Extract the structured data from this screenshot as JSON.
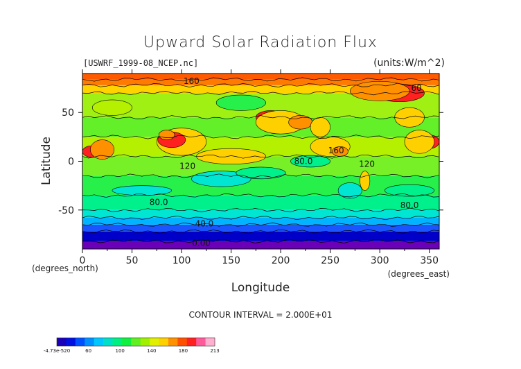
{
  "chart_data": {
    "type": "heatmap",
    "title": "Upward Solar Radiation Flux",
    "source_label": "[USWRF_1999-08_NCEP.nc]",
    "units_label": "(units:W/m^2)",
    "xlabel": "Longitude",
    "ylabel": "Latitude",
    "x_unit_label": "(degrees_east)",
    "y_unit_label": "(degrees_north)",
    "xlim": [
      0,
      360
    ],
    "ylim": [
      -90,
      90
    ],
    "x_ticks": [
      0,
      50,
      100,
      150,
      200,
      250,
      300,
      350
    ],
    "y_ticks": [
      50,
      0,
      -50
    ],
    "contour_interval_text": "CONTOUR INTERVAL = 2.000E+01",
    "contour_labels": [
      {
        "text": "160",
        "x": 110,
        "y": 82
      },
      {
        "text": "60",
        "x": 337,
        "y": 75
      },
      {
        "text": "160",
        "x": 256,
        "y": 11
      },
      {
        "text": "80.0",
        "x": 223,
        "y": 0
      },
      {
        "text": "120",
        "x": 106,
        "y": -5
      },
      {
        "text": "120",
        "x": 287,
        "y": -3
      },
      {
        "text": "80.0",
        "x": 77,
        "y": -42
      },
      {
        "text": "80.0",
        "x": 330,
        "y": -45
      },
      {
        "text": "40.0",
        "x": 123,
        "y": -64
      },
      {
        "text": "0.00",
        "x": 120,
        "y": -84
      }
    ],
    "colorbar": {
      "labels": [
        "-4.73e-520",
        "60",
        "100",
        "140",
        "180",
        "213"
      ],
      "colors": [
        "#1a00b8",
        "#0010e0",
        "#0050ff",
        "#0090ff",
        "#00c8ff",
        "#00e0c8",
        "#00f080",
        "#10f040",
        "#60f020",
        "#a0f000",
        "#e0f000",
        "#ffd000",
        "#ff9000",
        "#ff5000",
        "#ff2020",
        "#ff5a9a",
        "#ffb0d0"
      ]
    },
    "latitude_bands": [
      {
        "from": -90,
        "to": -82,
        "value": 0,
        "color": "#6a00b8"
      },
      {
        "from": -82,
        "to": -72,
        "value": 20,
        "color": "#0000c8"
      },
      {
        "from": -72,
        "to": -65,
        "value": 40,
        "color": "#1a55ff"
      },
      {
        "from": -65,
        "to": -58,
        "value": 60,
        "color": "#00b4ff"
      },
      {
        "from": -58,
        "to": -50,
        "value": 70,
        "color": "#00e6d2"
      },
      {
        "from": -50,
        "to": -35,
        "value": 80,
        "color": "#00f08c"
      },
      {
        "from": -35,
        "to": -15,
        "value": 90,
        "color": "#28f04a"
      },
      {
        "from": -15,
        "to": 5,
        "value": 110,
        "color": "#78f028"
      },
      {
        "from": 5,
        "to": 25,
        "value": 120,
        "color": "#b4f000"
      },
      {
        "from": 25,
        "to": 45,
        "value": 110,
        "color": "#64f028"
      },
      {
        "from": 45,
        "to": 70,
        "value": 120,
        "color": "#a0f014"
      },
      {
        "from": 70,
        "to": 78,
        "value": 150,
        "color": "#ffd200"
      },
      {
        "from": 78,
        "to": 84,
        "value": 170,
        "color": "#ff7a00"
      },
      {
        "from": 84,
        "to": 90,
        "value": 180,
        "color": "#ff5a00"
      }
    ],
    "patches": [
      {
        "lon": 10,
        "lat": 10,
        "rlon": 10,
        "rlat": 6,
        "color": "#ff2020"
      },
      {
        "lon": 20,
        "lat": 12,
        "rlon": 12,
        "rlat": 10,
        "color": "#ff9000"
      },
      {
        "lon": 100,
        "lat": 20,
        "rlon": 25,
        "rlat": 14,
        "color": "#ffd000"
      },
      {
        "lon": 90,
        "lat": 22,
        "rlon": 14,
        "rlat": 8,
        "color": "#ff2020"
      },
      {
        "lon": 85,
        "lat": 27,
        "rlon": 8,
        "rlat": 5,
        "color": "#ff9000"
      },
      {
        "lon": 190,
        "lat": 45,
        "rlon": 15,
        "rlat": 7,
        "color": "#ff2020"
      },
      {
        "lon": 200,
        "lat": 40,
        "rlon": 25,
        "rlat": 12,
        "color": "#ffd000"
      },
      {
        "lon": 220,
        "lat": 40,
        "rlon": 12,
        "rlat": 7,
        "color": "#ff9000"
      },
      {
        "lon": 320,
        "lat": 70,
        "rlon": 25,
        "rlat": 9,
        "color": "#ff2020"
      },
      {
        "lon": 300,
        "lat": 72,
        "rlon": 30,
        "rlat": 10,
        "color": "#ff9000"
      },
      {
        "lon": 350,
        "lat": 20,
        "rlon": 10,
        "rlat": 7,
        "color": "#ff2020"
      },
      {
        "lon": 340,
        "lat": 20,
        "rlon": 15,
        "rlat": 12,
        "color": "#ffd000"
      },
      {
        "lon": 250,
        "lat": 15,
        "rlon": 20,
        "rlat": 10,
        "color": "#ffd000"
      },
      {
        "lon": 260,
        "lat": 10,
        "rlon": 8,
        "rlat": 5,
        "color": "#ff9000"
      },
      {
        "lon": 240,
        "lat": 35,
        "rlon": 10,
        "rlat": 10,
        "color": "#ffd000"
      },
      {
        "lon": 150,
        "lat": 5,
        "rlon": 35,
        "rlat": 8,
        "color": "#ffd000"
      },
      {
        "lon": 230,
        "lat": 0,
        "rlon": 20,
        "rlat": 6,
        "color": "#00f08c"
      },
      {
        "lon": 140,
        "lat": -18,
        "rlon": 30,
        "rlat": 8,
        "color": "#00e6d2"
      },
      {
        "lon": 180,
        "lat": -12,
        "rlon": 25,
        "rlat": 6,
        "color": "#00f08c"
      },
      {
        "lon": 270,
        "lat": -30,
        "rlon": 12,
        "rlat": 8,
        "color": "#00e6d2"
      },
      {
        "lon": 285,
        "lat": -20,
        "rlon": 5,
        "rlat": 10,
        "color": "#ffd000"
      },
      {
        "lon": 30,
        "lat": 55,
        "rlon": 20,
        "rlat": 8,
        "color": "#b4f000"
      },
      {
        "lon": 160,
        "lat": 60,
        "rlon": 25,
        "rlat": 8,
        "color": "#28f04a"
      },
      {
        "lon": 330,
        "lat": 45,
        "rlon": 15,
        "rlat": 10,
        "color": "#ffd000"
      },
      {
        "lon": 60,
        "lat": -30,
        "rlon": 30,
        "rlat": 5,
        "color": "#00e6d2"
      },
      {
        "lon": 330,
        "lat": -30,
        "rlon": 25,
        "rlat": 6,
        "color": "#00f08c"
      }
    ]
  }
}
